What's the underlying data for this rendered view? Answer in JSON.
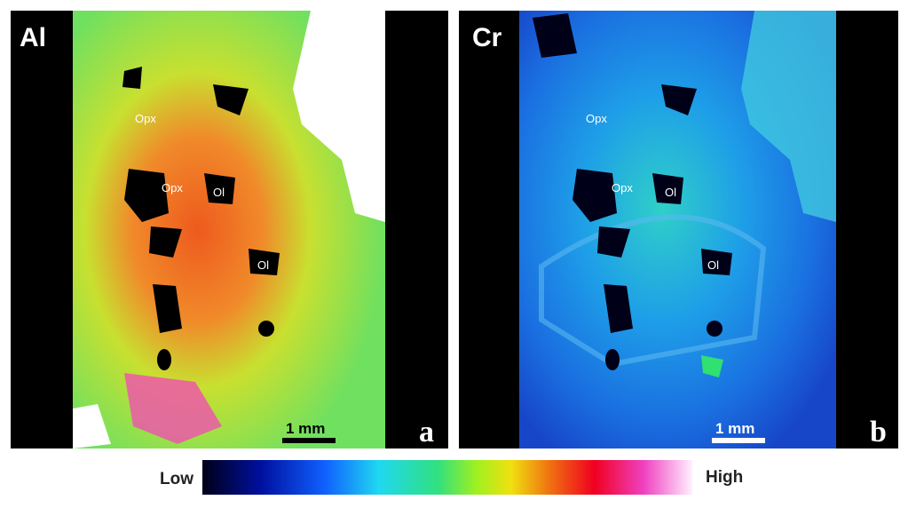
{
  "panels": [
    {
      "element": "Al",
      "letter": "a",
      "scale_bar": "1 mm",
      "annotations": [
        "Opx",
        "Opx",
        "Ol",
        "Ol"
      ]
    },
    {
      "element": "Cr",
      "letter": "b",
      "scale_bar": "1 mm",
      "annotations": [
        "Opx",
        "Opx",
        "Ol",
        "Ol"
      ]
    }
  ],
  "colorbar": {
    "low_label": "Low",
    "high_label": "High"
  }
}
